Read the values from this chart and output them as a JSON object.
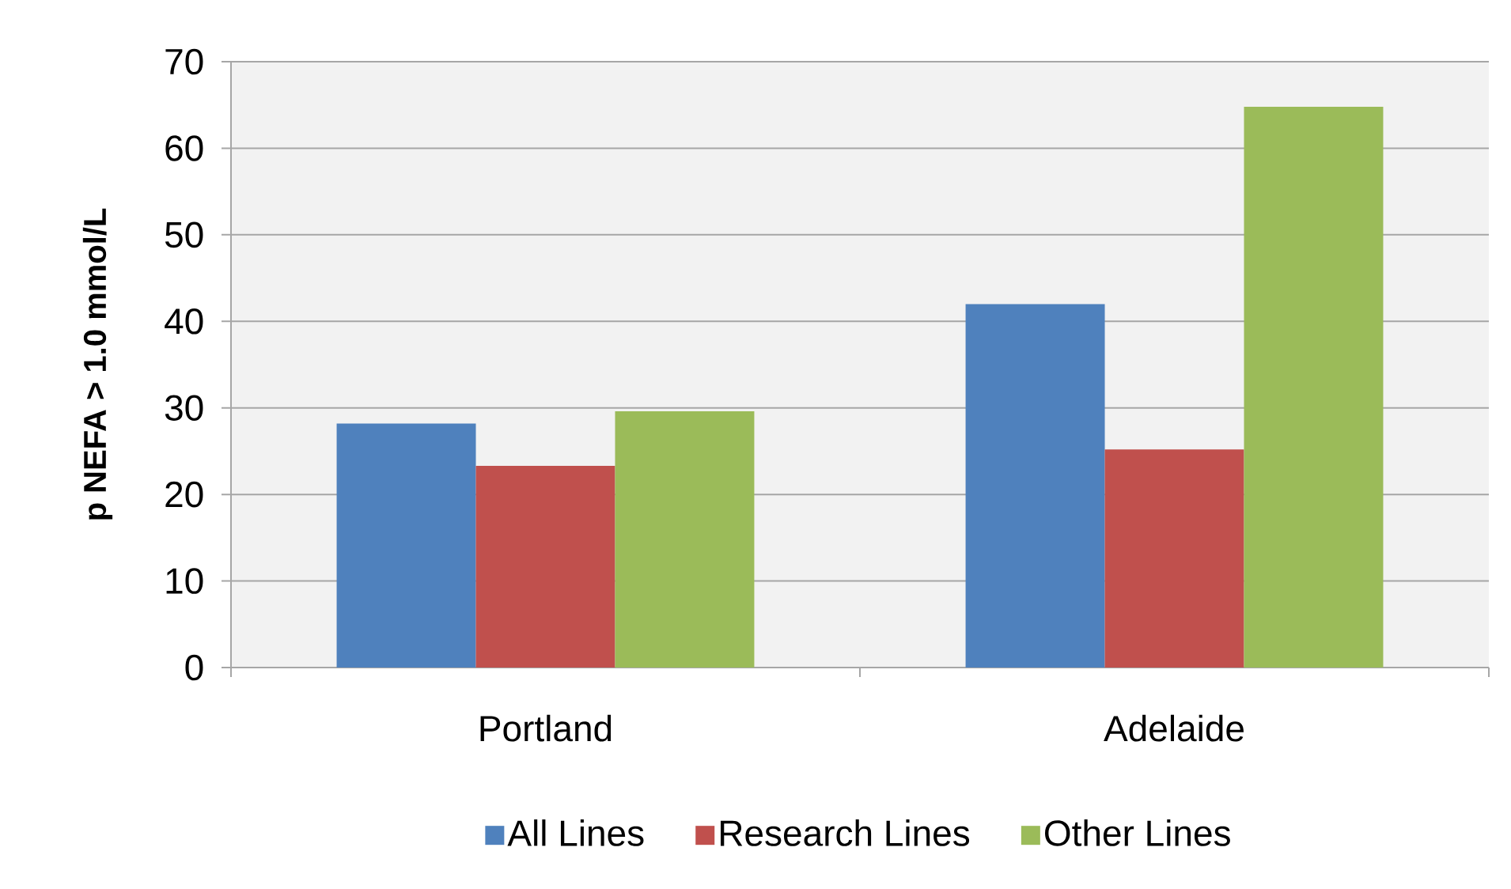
{
  "chart_data": {
    "type": "bar",
    "ylabel": "p NEFA > 1.0 mmol/L",
    "categories": [
      "Portland",
      "Adelaide"
    ],
    "series": [
      {
        "name": "All Lines",
        "color": "#4f81bd",
        "values": [
          28.2,
          42.0
        ]
      },
      {
        "name": "Research Lines",
        "color": "#c0504d",
        "values": [
          23.3,
          25.2
        ]
      },
      {
        "name": "Other Lines",
        "color": "#9bbb59",
        "values": [
          29.6,
          64.8
        ]
      }
    ],
    "ylim": [
      0,
      70
    ],
    "yticks": [
      0,
      10,
      20,
      30,
      40,
      50,
      60,
      70
    ],
    "grid": "y",
    "legend": "bottom"
  }
}
